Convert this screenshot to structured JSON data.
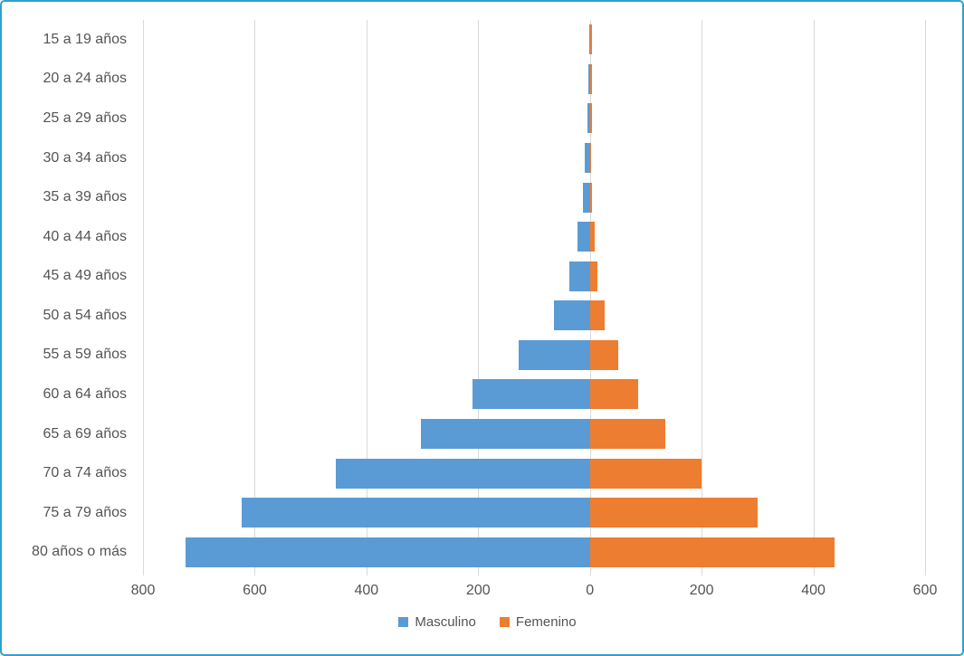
{
  "frame": {
    "border_color": "#31a1ce",
    "background": "#ffffff"
  },
  "chart_data": {
    "type": "bar",
    "subtype": "population-pyramid",
    "orientation": "horizontal",
    "title": "",
    "categories": [
      "15 a 19 años",
      "20 a 24 años",
      "25 a 29 años",
      "30 a 34 años",
      "35 a 39 años",
      "40 a 44 años",
      "45 a 49 años",
      "50 a 54 años",
      "55 a 59 años",
      "60 a 64 años",
      "65 a 69 años",
      "70 a 74 años",
      "75 a 79 años",
      "80 años o más"
    ],
    "series": [
      {
        "name": "Masculino",
        "side": "left",
        "color": "#5b9bd5",
        "values": [
          1,
          2,
          4,
          9,
          12,
          23,
          36,
          64,
          128,
          210,
          303,
          455,
          624,
          724
        ]
      },
      {
        "name": "Femenino",
        "side": "right",
        "color": "#ed7d31",
        "values": [
          3,
          3,
          3,
          2,
          4,
          9,
          14,
          26,
          50,
          87,
          135,
          200,
          300,
          438
        ]
      }
    ],
    "x_axis": {
      "min": -800,
      "max": 600,
      "tick_step": 200,
      "tick_labels": [
        "800",
        "600",
        "400",
        "200",
        "0",
        "200",
        "400",
        "600"
      ],
      "note": "tick labels show absolute values"
    },
    "y_axis": {
      "label": ""
    },
    "grid": true,
    "gridline_color": "#d9d9d9",
    "text_color": "#545454",
    "legend_position": "bottom"
  }
}
